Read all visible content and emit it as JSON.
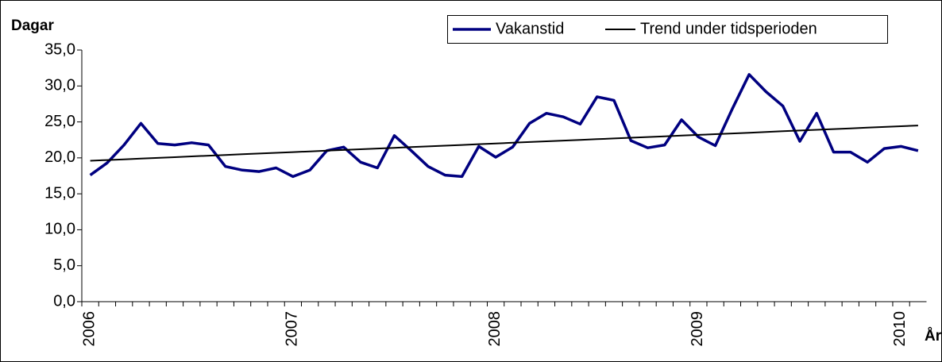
{
  "chart_data": {
    "type": "line",
    "y_label": "Dagar",
    "x_label": "År",
    "categories": [
      "2006",
      null,
      null,
      null,
      null,
      null,
      null,
      null,
      null,
      null,
      null,
      null,
      "2007",
      null,
      null,
      null,
      null,
      null,
      null,
      null,
      null,
      null,
      null,
      null,
      "2008",
      null,
      null,
      null,
      null,
      null,
      null,
      null,
      null,
      null,
      null,
      null,
      "2009",
      null,
      null,
      null,
      null,
      null,
      null,
      null,
      null,
      null,
      null,
      null,
      "2010",
      null
    ],
    "series": [
      {
        "name": "Vakanstid",
        "color": "#000080",
        "values": [
          17.6,
          19.3,
          21.8,
          24.8,
          22.0,
          21.8,
          22.1,
          21.8,
          18.8,
          18.3,
          18.1,
          18.6,
          17.4,
          18.3,
          21.0,
          21.5,
          19.4,
          18.6,
          23.1,
          21.0,
          18.8,
          17.6,
          17.4,
          21.6,
          20.1,
          21.5,
          24.8,
          26.2,
          25.7,
          24.7,
          28.5,
          28.0,
          22.4,
          21.4,
          21.8,
          25.3,
          22.9,
          21.7,
          26.8,
          31.6,
          29.2,
          27.2,
          22.3,
          26.2,
          20.8,
          20.8,
          19.4,
          21.3,
          21.6,
          21.0
        ]
      },
      {
        "name": "Trend under tidsperioden",
        "color": "#000000",
        "values": [
          19.6,
          19.7,
          19.8,
          19.9,
          20.0,
          20.1,
          20.2,
          20.3,
          20.4,
          20.5,
          20.6,
          20.7,
          20.8,
          20.9,
          21.0,
          21.1,
          21.2,
          21.3,
          21.4,
          21.5,
          21.6,
          21.7,
          21.8,
          21.9,
          22.0,
          22.1,
          22.2,
          22.3,
          22.4,
          22.5,
          22.6,
          22.7,
          22.8,
          22.9,
          23.0,
          23.1,
          23.2,
          23.3,
          23.4,
          23.5,
          23.6,
          23.7,
          23.8,
          23.9,
          24.0,
          24.1,
          24.2,
          24.3,
          24.4,
          24.5
        ]
      }
    ],
    "ylim": [
      0,
      35
    ],
    "yticks": [
      {
        "value": 0,
        "label": "0,0"
      },
      {
        "value": 5,
        "label": "5,0"
      },
      {
        "value": 10,
        "label": "10,0"
      },
      {
        "value": 15,
        "label": "15,0"
      },
      {
        "value": 20,
        "label": "20,0"
      },
      {
        "value": 25,
        "label": "25,0"
      },
      {
        "value": 30,
        "label": "30,0"
      },
      {
        "value": 35,
        "label": "35,0"
      }
    ],
    "grid": false,
    "legend": "top-right"
  }
}
